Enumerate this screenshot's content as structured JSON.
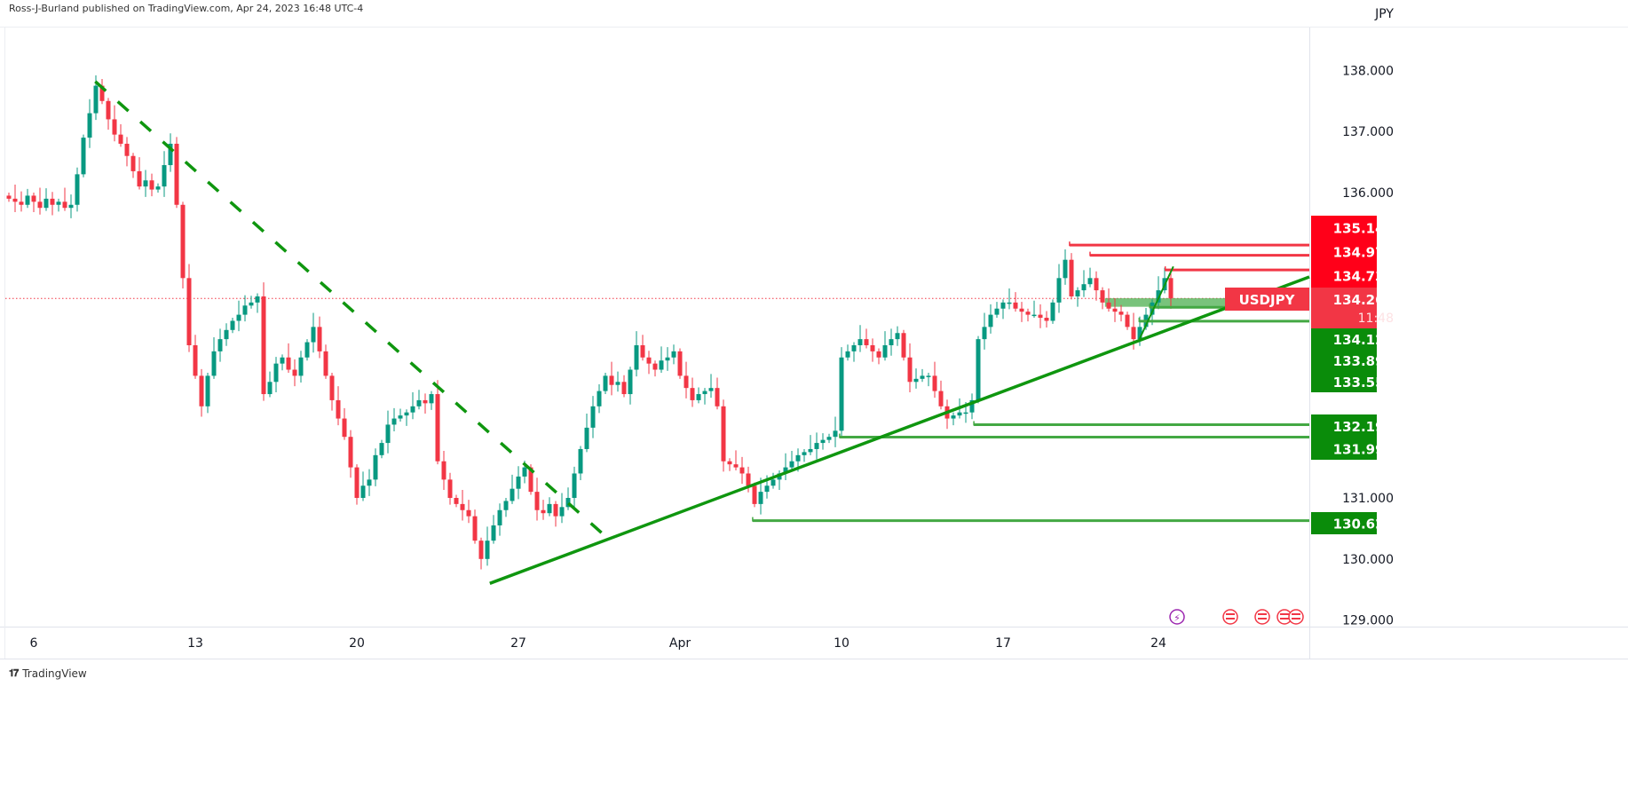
{
  "header": {
    "published": "Ross-J-Burland published on TradingView.com, Apr 24, 2023 16:48 UTC-4"
  },
  "brand": {
    "name": "TradingView",
    "logo": "TV"
  },
  "colors": {
    "up": "#089981",
    "down": "#f23645",
    "trend": "#0f960f",
    "level_green": "#43a843",
    "level_red": "#f23645",
    "label_red": "#ff0019",
    "label_green": "#0a8c0a",
    "symbol_label": "#f23645"
  },
  "chart_data": {
    "type": "candlestick",
    "symbol": "USDJPY",
    "currency": "JPY",
    "last_price": "134.267",
    "countdown": "11:48",
    "ylim": [
      129,
      138.6
    ],
    "y_ticks": [
      "138.000",
      "137.000",
      "136.000",
      "131.000",
      "130.000",
      "129.000"
    ],
    "y_tick_values": [
      138,
      137,
      136,
      131,
      130,
      129
    ],
    "x_ticks": [
      {
        "label": "6",
        "index": 4
      },
      {
        "label": "13",
        "index": 30
      },
      {
        "label": "20",
        "index": 56
      },
      {
        "label": "27",
        "index": 82
      },
      {
        "label": "Apr",
        "index": 108
      },
      {
        "label": "10",
        "index": 134
      },
      {
        "label": "17",
        "index": 160
      },
      {
        "label": "24",
        "index": 185
      }
    ],
    "first_open": 135.95,
    "closes": [
      135.9,
      135.85,
      135.8,
      135.95,
      135.85,
      135.75,
      135.9,
      135.8,
      135.85,
      135.75,
      135.8,
      136.3,
      136.9,
      137.3,
      137.75,
      137.5,
      137.2,
      136.95,
      136.8,
      136.6,
      136.35,
      136.1,
      136.2,
      136.05,
      136.1,
      136.45,
      136.8,
      135.8,
      134.6,
      133.5,
      133.0,
      132.5,
      133.0,
      133.4,
      133.6,
      133.75,
      133.9,
      134.0,
      134.15,
      134.2,
      134.3,
      132.7,
      132.9,
      133.2,
      133.3,
      133.1,
      133.0,
      133.3,
      133.55,
      133.8,
      133.4,
      133.0,
      132.6,
      132.3,
      132.0,
      131.5,
      131.0,
      131.2,
      131.3,
      131.7,
      131.9,
      132.2,
      132.3,
      132.35,
      132.4,
      132.5,
      132.6,
      132.55,
      132.7,
      131.6,
      131.3,
      131.0,
      130.9,
      130.8,
      130.7,
      130.3,
      130.0,
      130.3,
      130.55,
      130.8,
      130.95,
      131.15,
      131.35,
      131.5,
      131.1,
      130.8,
      130.75,
      130.9,
      130.7,
      130.85,
      131.0,
      131.4,
      131.8,
      132.15,
      132.5,
      132.75,
      133.0,
      132.85,
      132.9,
      132.7,
      133.1,
      133.5,
      133.3,
      133.2,
      133.1,
      133.25,
      133.3,
      133.4,
      133.0,
      132.8,
      132.6,
      132.7,
      132.75,
      132.8,
      132.5,
      131.6,
      131.55,
      131.5,
      131.4,
      131.2,
      130.9,
      131.1,
      131.2,
      131.3,
      131.4,
      131.5,
      131.6,
      131.7,
      131.75,
      131.8,
      131.9,
      131.95,
      132.0,
      132.1,
      133.3,
      133.4,
      133.5,
      133.6,
      133.5,
      133.4,
      133.3,
      133.5,
      133.6,
      133.7,
      133.3,
      132.9,
      132.95,
      133.0,
      133.0,
      132.75,
      132.5,
      132.3,
      132.35,
      132.4,
      132.4,
      132.6,
      133.6,
      133.8,
      134.0,
      134.1,
      134.2,
      134.2,
      134.1,
      134.05,
      134.0,
      134.0,
      133.95,
      133.9,
      134.2,
      134.6,
      134.9,
      134.3,
      134.4,
      134.5,
      134.6,
      134.4,
      134.2,
      134.1,
      134.05,
      134.0,
      133.8,
      133.6,
      133.8,
      134.0,
      134.2,
      134.4,
      134.6,
      134.267
    ],
    "trendlines": [
      {
        "name": "downtrend-dashed",
        "from": [
          13.9,
          137.82
        ],
        "to": [
          95.7,
          130.4
        ],
        "style": "dashed"
      },
      {
        "name": "uptrend-main",
        "from": [
          77.4,
          129.6
        ],
        "to": [
          209.3,
          134.62
        ],
        "style": "solid"
      },
      {
        "name": "uptrend-short",
        "from": [
          181.9,
          133.59
        ],
        "to": [
          187.4,
          134.79
        ],
        "style": "solid"
      }
    ],
    "levels": [
      {
        "price": 135.14,
        "from": 170.7,
        "color": "red",
        "label": "135.140"
      },
      {
        "price": 134.974,
        "from": 174,
        "color": "red",
        "label": "134.974"
      },
      {
        "price": 134.734,
        "from": 186.1,
        "color": "red",
        "label": "134.734"
      },
      {
        "price": 134.122,
        "from": 183.6,
        "color": "green",
        "label": "134.122"
      },
      {
        "price": 133.894,
        "from": 181.9,
        "color": "green",
        "label": "133.894"
      },
      {
        "price": 133.55,
        "from": null,
        "color": "green",
        "label": "133.550"
      },
      {
        "price": 132.199,
        "from": 155.3,
        "color": "green",
        "label": "132.199"
      },
      {
        "price": 131.995,
        "from": 133.7,
        "color": "green",
        "label": "131.995"
      },
      {
        "price": 130.628,
        "from": 119.7,
        "color": "green",
        "label": "130.628"
      }
    ],
    "zone": {
      "from": 176.4,
      "top": 134.27,
      "bottom": 134.13
    }
  }
}
